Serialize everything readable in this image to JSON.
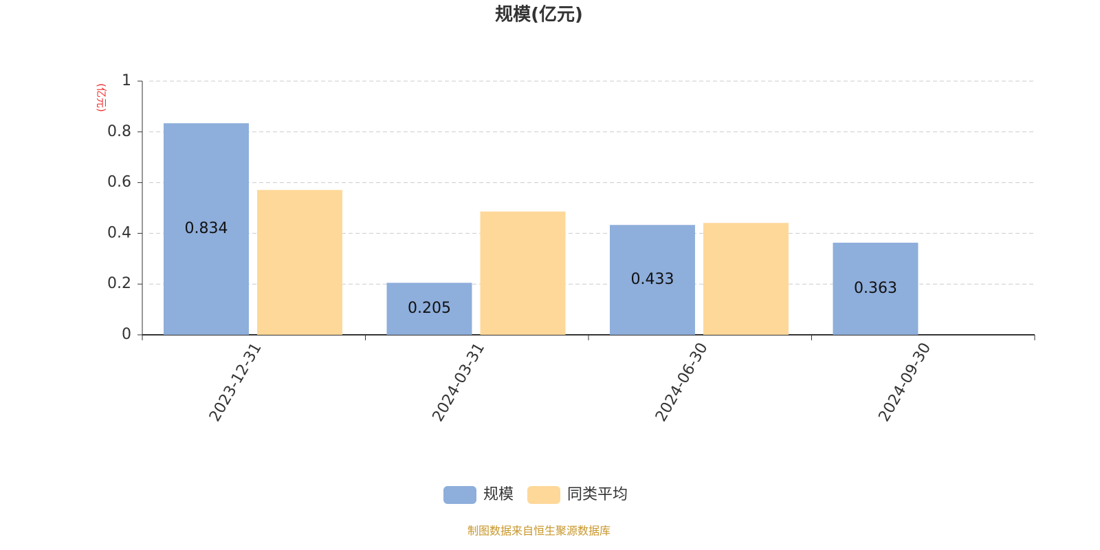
{
  "chart_data": {
    "type": "bar",
    "title": "规模(亿元)",
    "y_unit_label": "(亿元)",
    "categories": [
      "2023-12-31",
      "2024-03-31",
      "2024-06-30",
      "2024-09-30"
    ],
    "series": [
      {
        "name": "规模",
        "color": "#8eaedb",
        "values": [
          0.834,
          0.205,
          0.433,
          0.363
        ],
        "show_labels": true
      },
      {
        "name": "同类平均",
        "color": "#fed899",
        "values": [
          0.571,
          0.486,
          0.441,
          null
        ],
        "show_labels": false
      }
    ],
    "ylim": [
      0,
      1
    ],
    "yticks": [
      0,
      0.2,
      0.4,
      0.6,
      0.8,
      1
    ],
    "grid": true,
    "legend": "bottom",
    "source": "制图数据来自恒生聚源数据库"
  }
}
